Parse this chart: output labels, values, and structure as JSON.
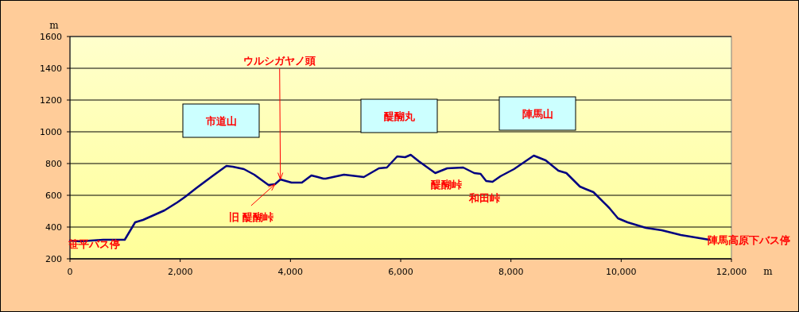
{
  "chart_data": {
    "type": "line",
    "ylabel": "m",
    "xlabel": "m",
    "x": [
      0,
      173,
      605,
      994,
      1182,
      1326,
      1715,
      1945,
      2089,
      2291,
      2580,
      2839,
      2954,
      3156,
      3343,
      3602,
      3720,
      3818,
      4020,
      4207,
      4380,
      4496,
      4597,
      4640,
      4971,
      5331,
      5605,
      5749,
      5937,
      6081,
      6182,
      6326,
      6628,
      6844,
      7133,
      7334,
      7450,
      7550,
      7666,
      7810,
      8055,
      8415,
      8631,
      8862,
      9006,
      9251,
      9352,
      9496,
      9784,
      9942,
      10115,
      10447,
      10735,
      11081,
      11599
    ],
    "series": [
      {
        "color": "#000080",
        "values": [
          315,
          310,
          320,
          320,
          430,
          445,
          505,
          555,
          590,
          645,
          720,
          785,
          780,
          765,
          730,
          665,
          670,
          700,
          680,
          680,
          725,
          715,
          705,
          705,
          730,
          715,
          770,
          775,
          845,
          840,
          855,
          815,
          740,
          770,
          775,
          740,
          735,
          690,
          685,
          720,
          765,
          850,
          820,
          755,
          740,
          655,
          640,
          620,
          520,
          455,
          430,
          395,
          380,
          350,
          320
        ]
      }
    ],
    "xlim": [
      0,
      12000
    ],
    "ylim": [
      200,
      1600
    ],
    "xticks": [
      0,
      {
        "value": 2000,
        "label": "2,000"
      },
      {
        "value": 4000,
        "label": "4,000"
      },
      {
        "value": 6000,
        "label": "6,000"
      },
      {
        "value": 8000,
        "label": "8,000"
      },
      {
        "value": 10000,
        "label": "10,000"
      },
      {
        "value": 12000,
        "label": "12,000"
      }
    ],
    "yticks": [
      200,
      400,
      600,
      800,
      1000,
      1200,
      1400,
      1600
    ],
    "grid": "y",
    "marker": "none",
    "line_style": "solid",
    "annotations": [
      {
        "text": "笹平バス停",
        "x": 0,
        "y": 315
      },
      "市道山",
      {
        "text": "ウルシガヤノ頭",
        "x": 3818,
        "y": 700
      },
      {
        "text": "旧 醍醐峠",
        "x": 3720,
        "y": 670
      },
      "醍醐丸",
      {
        "text": "醍醐峠",
        "x": 6628,
        "y": 740
      },
      {
        "text": "和田峠",
        "x": 7666,
        "y": 685
      },
      "陣馬山",
      {
        "text": "陣馬高原下バス停",
        "x": 11599,
        "y": 320
      }
    ]
  }
}
